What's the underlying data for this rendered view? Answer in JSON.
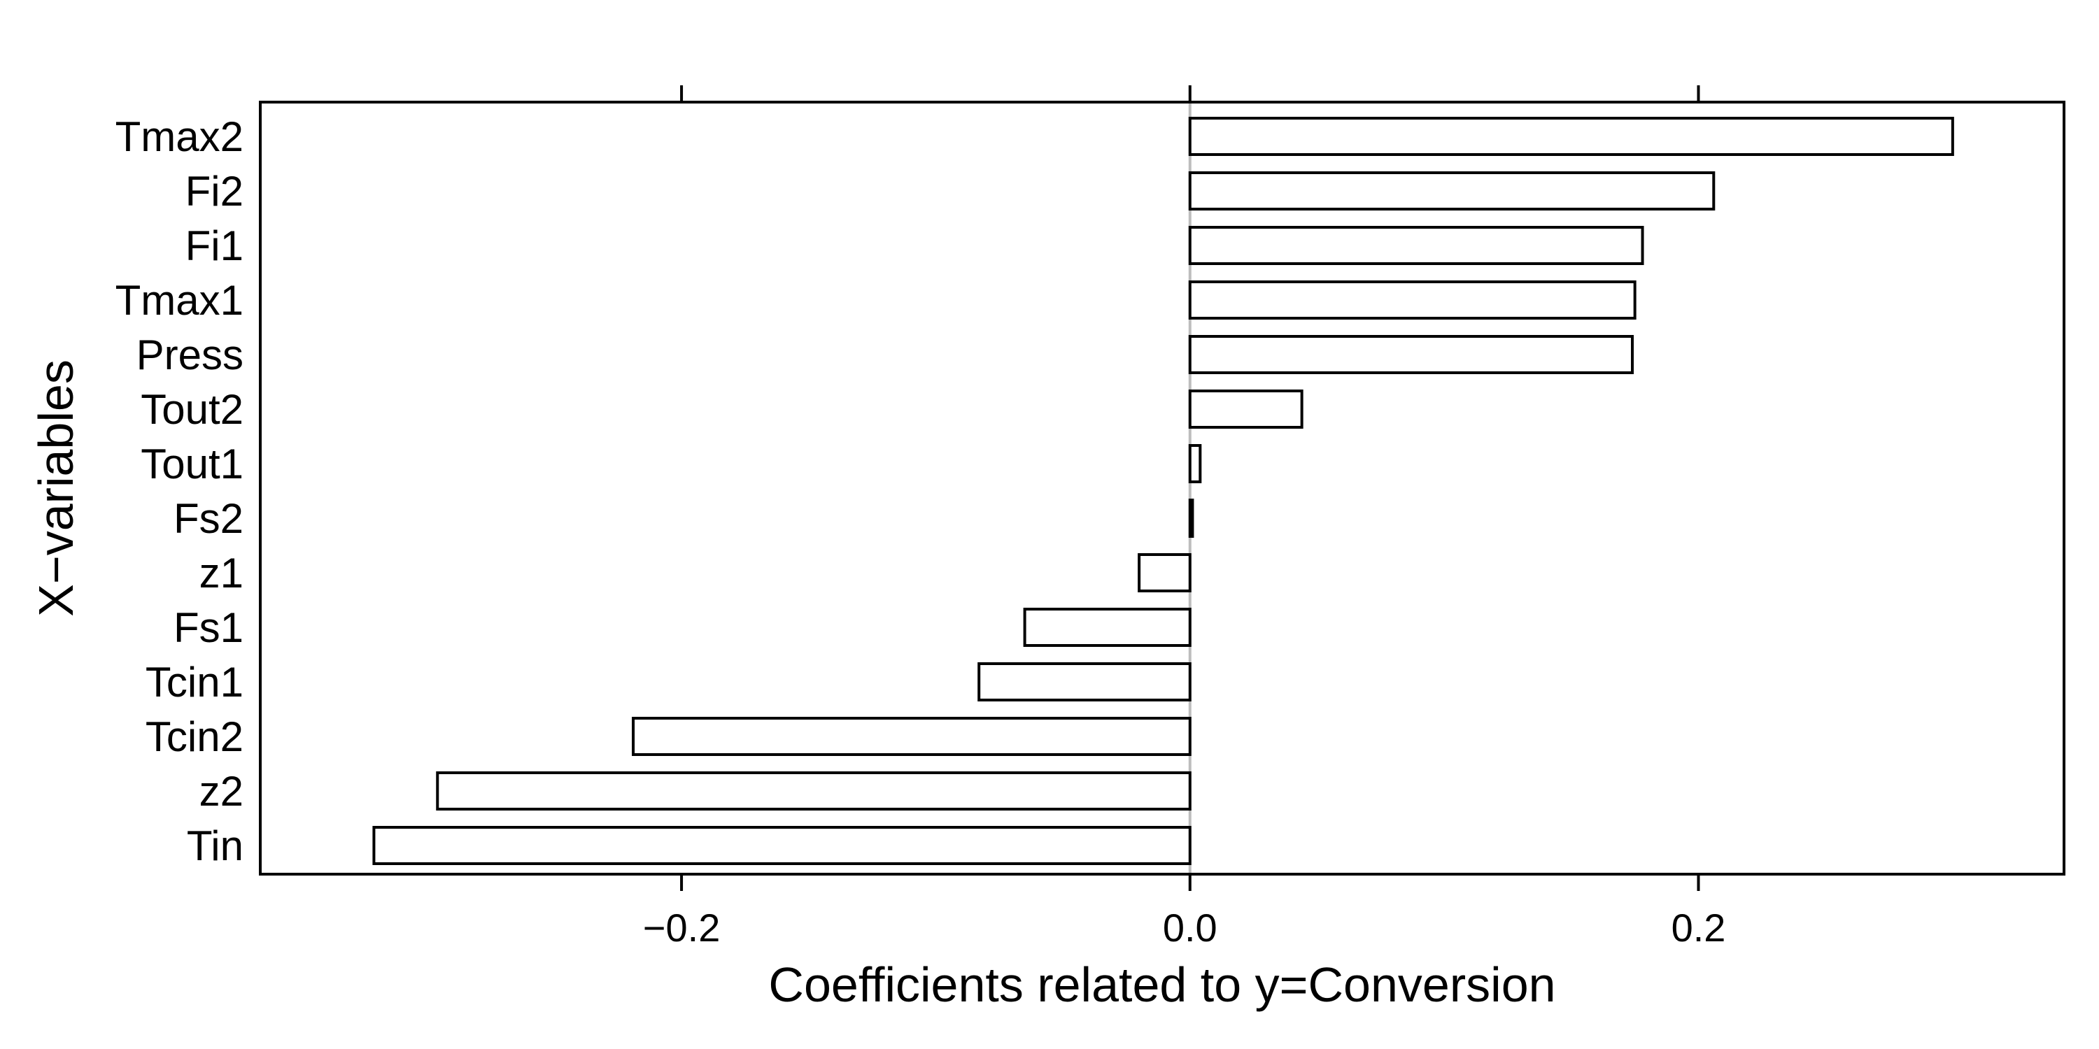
{
  "chart_data": {
    "type": "bar",
    "orientation": "horizontal",
    "title": "",
    "xlabel": "Coefficients related to y=Conversion",
    "ylabel": "X−variables",
    "xlim": [
      -0.3657,
      0.3438
    ],
    "x_ticks": [
      -0.2,
      0.0,
      0.2
    ],
    "x_tick_labels": [
      "−0.2",
      "0.0",
      "0.2"
    ],
    "grid": false,
    "categories": [
      "Tmax2",
      "Fi2",
      "Fi1",
      "Tmax1",
      "Press",
      "Tout2",
      "Tout1",
      "Fs2",
      "z1",
      "Fs1",
      "Tcin1",
      "Tcin2",
      "z2",
      "Tin"
    ],
    "values": [
      0.3,
      0.206,
      0.178,
      0.175,
      0.174,
      0.044,
      0.004,
      0.001,
      -0.02,
      -0.065,
      -0.083,
      -0.219,
      -0.296,
      -0.321
    ],
    "colors": {
      "bar_fill": "#ffffff",
      "bar_stroke": "#000000",
      "zero_line": "#bdbdbd",
      "axis": "#000000",
      "background": "#ffffff"
    }
  }
}
